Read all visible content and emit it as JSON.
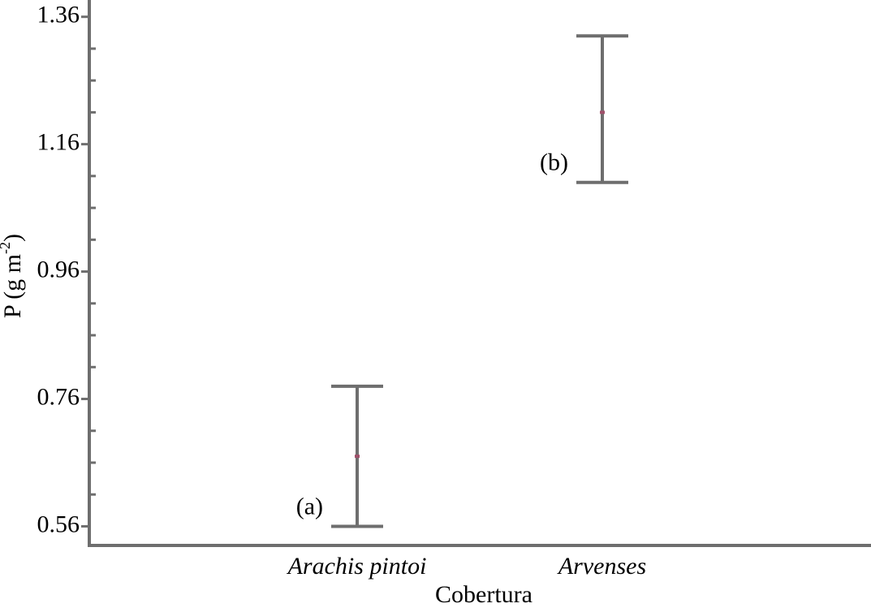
{
  "chart_data": {
    "type": "errorbar",
    "categories": [
      "Arachis pintoi",
      "Arvenses"
    ],
    "values": [
      0.67,
      1.21
    ],
    "lower": [
      0.56,
      1.1
    ],
    "upper": [
      0.78,
      1.33
    ],
    "letters": [
      "(a)",
      "(b)"
    ],
    "xlabel": "Cobertura",
    "ylabel": {
      "text": "P (g m",
      "sup": "-2",
      "close": ")"
    },
    "ylim": [
      0.53,
      1.38
    ],
    "yticks": [
      0.56,
      0.76,
      0.96,
      1.16,
      1.36
    ],
    "minor_yticks": [
      0.61,
      0.66,
      0.71,
      0.81,
      0.86,
      0.91,
      1.01,
      1.06,
      1.11,
      1.21,
      1.26,
      1.31
    ],
    "color": "#6e6e6e",
    "mean_color": "#a0506a"
  }
}
